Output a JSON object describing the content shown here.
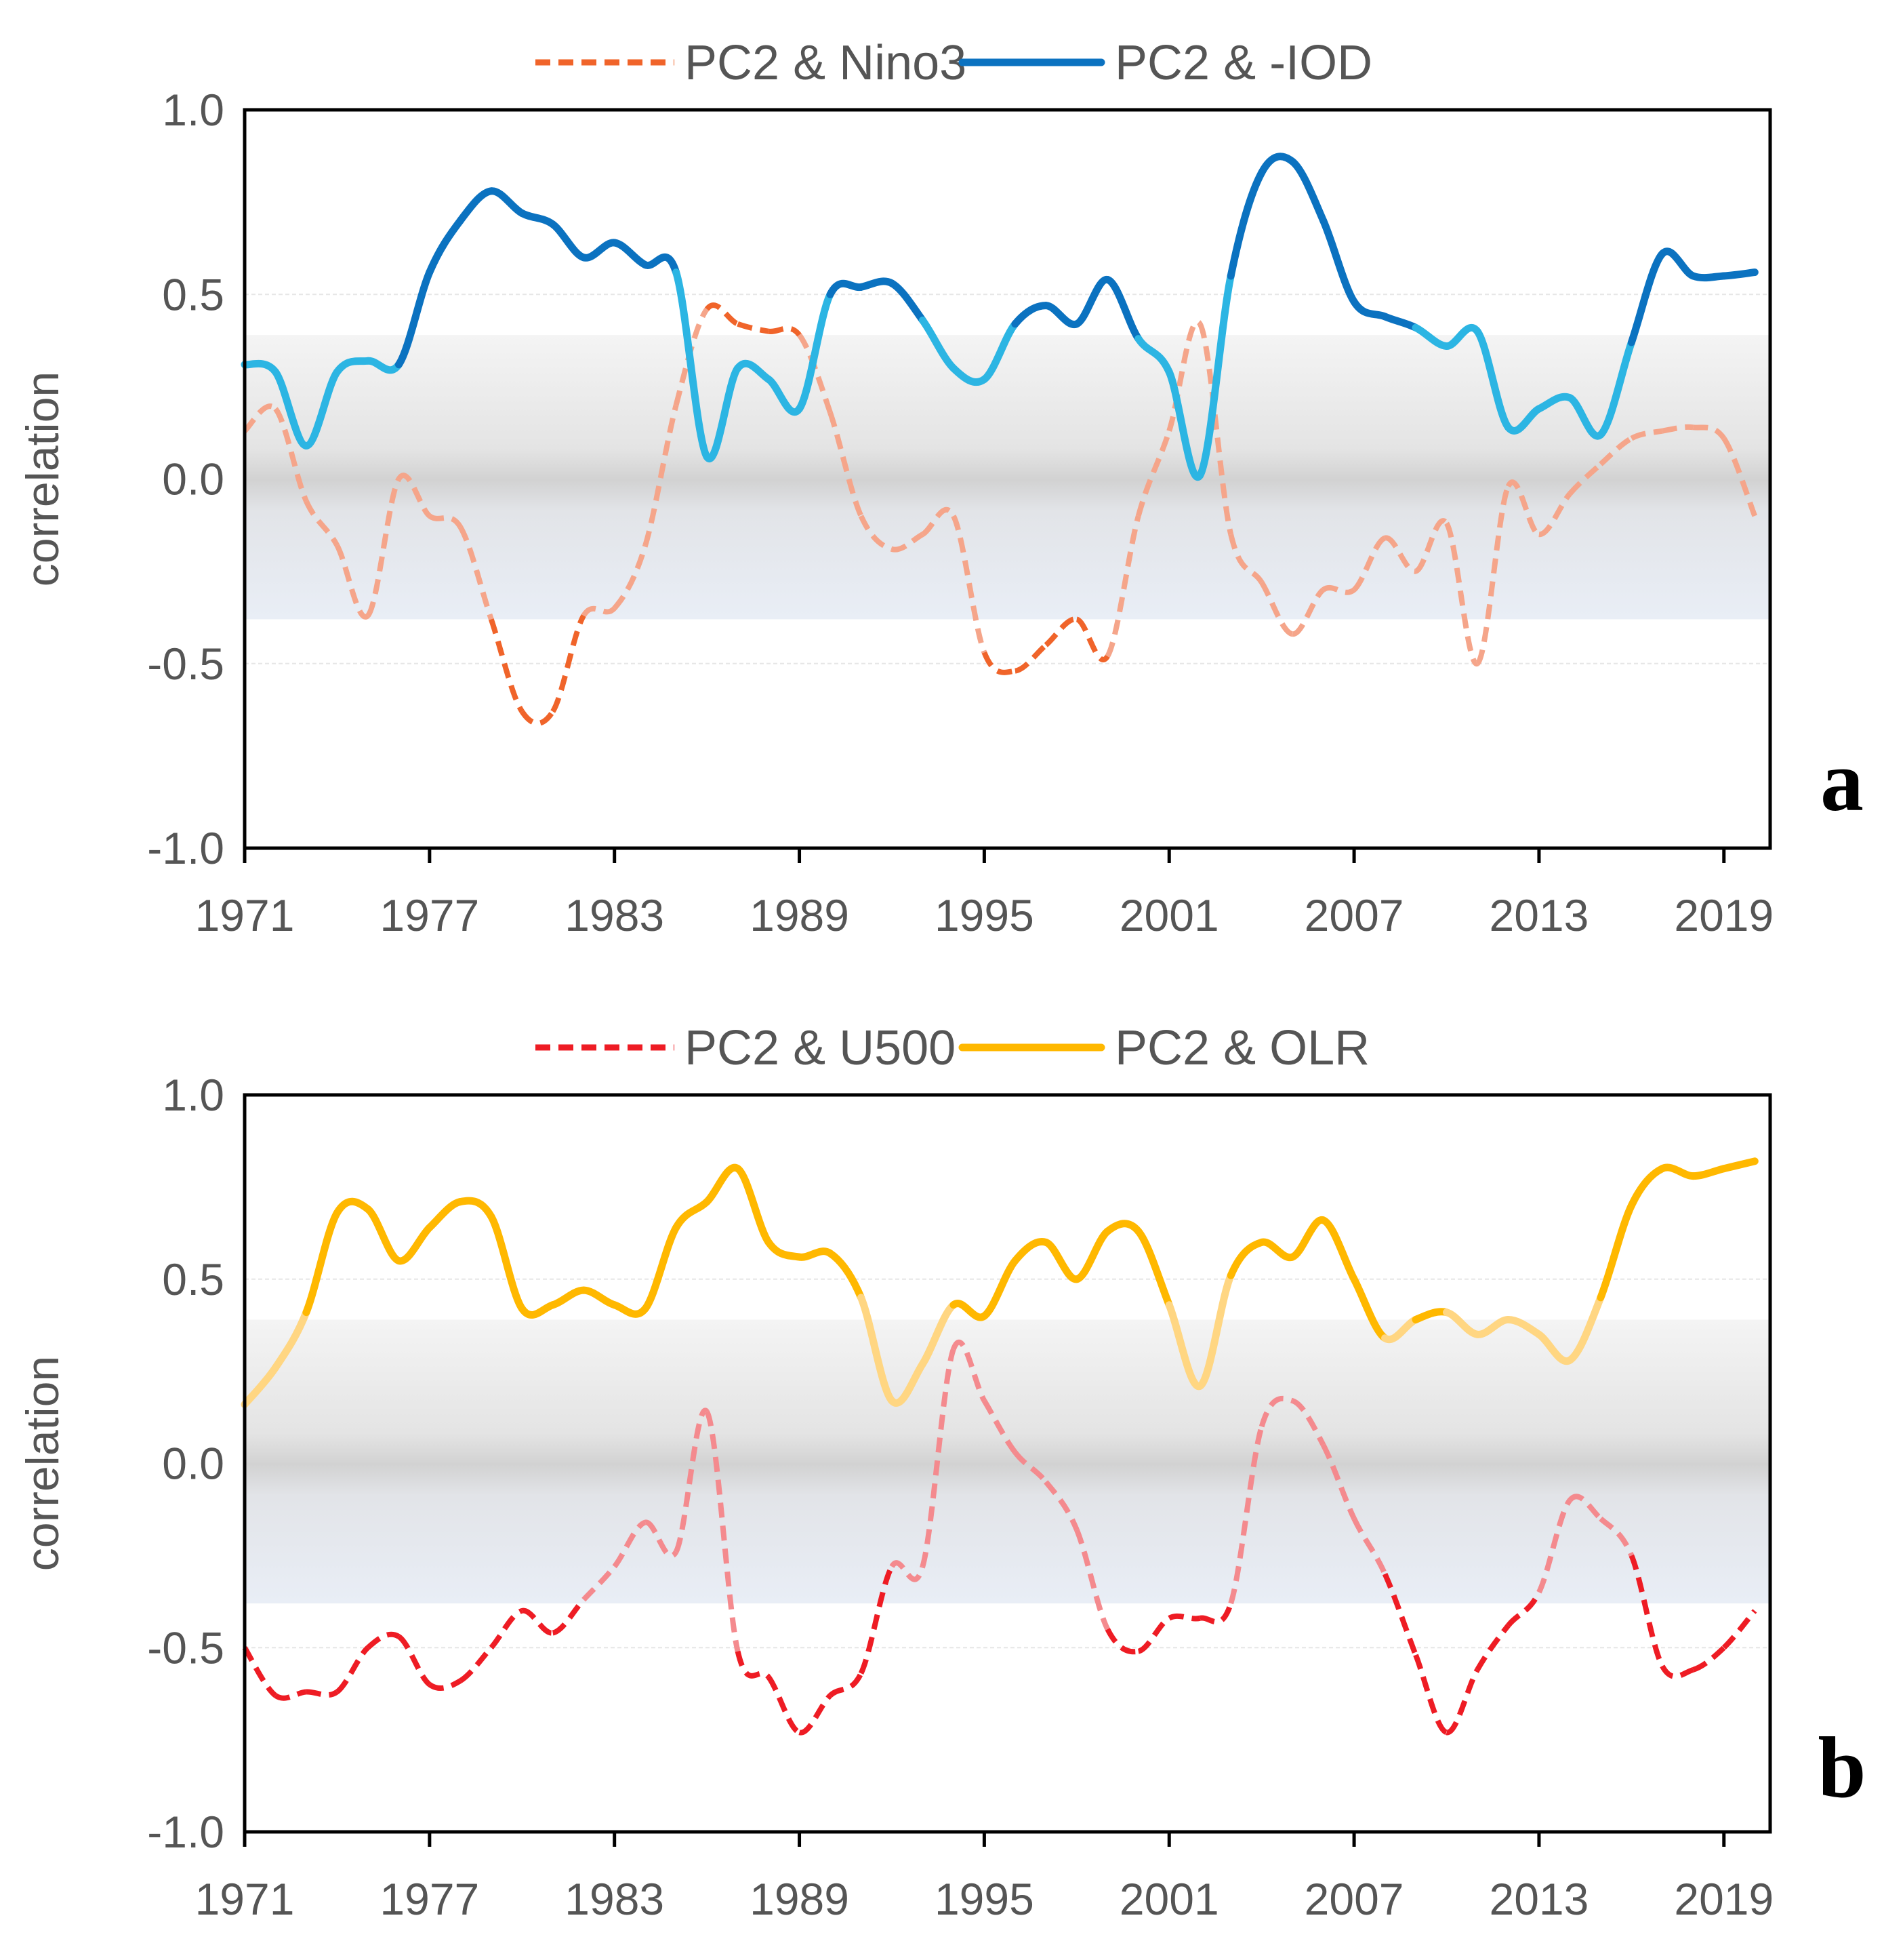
{
  "chart_data": [
    {
      "type": "line",
      "panel_label": "a",
      "ylabel": "correlation",
      "xlabel": "",
      "xlim": [
        1971,
        2020.5
      ],
      "ylim": [
        -1.0,
        1.0
      ],
      "yticks": [
        "1.0",
        "0.5",
        "0.0",
        "-0.5",
        "-1.0"
      ],
      "xticks": [
        "1971",
        "1977",
        "1983",
        "1989",
        "1995",
        "2001",
        "2007",
        "2013",
        "2019"
      ],
      "significance_band": [
        -0.38,
        0.39
      ],
      "legend_position": "top-center",
      "series": [
        {
          "name": "PC2 & Nino3",
          "style": "dashed",
          "color": "#f0642a",
          "faded_color": "#f5a58a",
          "x": [
            1971,
            1972,
            1973,
            1974,
            1975,
            1976,
            1977,
            1978,
            1979,
            1980,
            1981,
            1982,
            1983,
            1984,
            1985,
            1986,
            1987,
            1988,
            1989,
            1990,
            1991,
            1992,
            1993,
            1994,
            1995,
            1996,
            1997,
            1998,
            1999,
            2000,
            2001,
            2002,
            2003,
            2004,
            2005,
            2006,
            2007,
            2008,
            2009,
            2010,
            2011,
            2012,
            2013,
            2014,
            2015,
            2016,
            2017,
            2018,
            2019,
            2020
          ],
          "values": [
            0.13,
            0.19,
            -0.06,
            -0.18,
            -0.37,
            0.0,
            -0.1,
            -0.13,
            -0.38,
            -0.63,
            -0.63,
            -0.37,
            -0.35,
            -0.18,
            0.2,
            0.46,
            0.42,
            0.4,
            0.39,
            0.18,
            -0.1,
            -0.19,
            -0.15,
            -0.1,
            -0.47,
            -0.52,
            -0.45,
            -0.38,
            -0.48,
            -0.1,
            0.13,
            0.42,
            -0.15,
            -0.28,
            -0.42,
            -0.3,
            -0.3,
            -0.16,
            -0.25,
            -0.12,
            -0.5,
            -0.02,
            -0.15,
            -0.04,
            0.04,
            0.11,
            0.13,
            0.14,
            0.11,
            -0.1
          ]
        },
        {
          "name": "PC2 & -IOD",
          "style": "solid",
          "color": "#0b72c0",
          "faded_color": "#2cb5e3",
          "x": [
            1971,
            1972,
            1973,
            1974,
            1975,
            1976,
            1977,
            1978,
            1979,
            1980,
            1981,
            1982,
            1983,
            1984,
            1985,
            1986,
            1987,
            1988,
            1989,
            1990,
            1991,
            1992,
            1993,
            1994,
            1995,
            1996,
            1997,
            1998,
            1999,
            2000,
            2001,
            2002,
            2003,
            2004,
            2005,
            2006,
            2007,
            2008,
            2009,
            2010,
            2011,
            2012,
            2013,
            2014,
            2015,
            2016,
            2017,
            2018,
            2019,
            2020
          ],
          "values": [
            0.31,
            0.29,
            0.09,
            0.29,
            0.32,
            0.31,
            0.56,
            0.7,
            0.78,
            0.72,
            0.69,
            0.6,
            0.64,
            0.58,
            0.56,
            0.06,
            0.3,
            0.27,
            0.19,
            0.5,
            0.52,
            0.53,
            0.43,
            0.3,
            0.27,
            0.42,
            0.47,
            0.42,
            0.54,
            0.38,
            0.29,
            0.01,
            0.55,
            0.83,
            0.86,
            0.7,
            0.48,
            0.44,
            0.41,
            0.36,
            0.4,
            0.14,
            0.19,
            0.22,
            0.12,
            0.37,
            0.61,
            0.55,
            0.55,
            0.56
          ]
        }
      ]
    },
    {
      "type": "line",
      "panel_label": "b",
      "ylabel": "correlation",
      "xlabel": "",
      "xlim": [
        1971,
        2020.5
      ],
      "ylim": [
        -1.0,
        1.0
      ],
      "yticks": [
        "1.0",
        "0.5",
        "0.0",
        "-0.5",
        "-1.0"
      ],
      "xticks": [
        "1971",
        "1977",
        "1983",
        "1989",
        "1995",
        "2001",
        "2007",
        "2013",
        "2019"
      ],
      "significance_band": [
        -0.38,
        0.39
      ],
      "legend_position": "top-center",
      "series": [
        {
          "name": "PC2 & U500",
          "style": "dashed",
          "color": "#ee1c24",
          "faded_color": "#f48a8e",
          "x": [
            1971,
            1972,
            1973,
            1974,
            1975,
            1976,
            1977,
            1978,
            1979,
            1980,
            1981,
            1982,
            1983,
            1984,
            1985,
            1986,
            1987,
            1988,
            1989,
            1990,
            1991,
            1992,
            1993,
            1994,
            1995,
            1996,
            1997,
            1998,
            1999,
            2000,
            2001,
            2002,
            2003,
            2004,
            2005,
            2006,
            2007,
            2008,
            2009,
            2010,
            2011,
            2012,
            2013,
            2014,
            2015,
            2016,
            2017,
            2018,
            2019,
            2020
          ],
          "values": [
            -0.5,
            -0.63,
            -0.62,
            -0.62,
            -0.5,
            -0.47,
            -0.6,
            -0.59,
            -0.5,
            -0.4,
            -0.46,
            -0.37,
            -0.28,
            -0.16,
            -0.24,
            0.14,
            -0.51,
            -0.58,
            -0.73,
            -0.63,
            -0.57,
            -0.28,
            -0.28,
            0.31,
            0.17,
            0.03,
            -0.05,
            -0.18,
            -0.45,
            -0.51,
            -0.42,
            -0.42,
            -0.38,
            0.1,
            0.17,
            0.05,
            -0.15,
            -0.3,
            -0.52,
            -0.73,
            -0.56,
            -0.44,
            -0.35,
            -0.1,
            -0.15,
            -0.25,
            -0.55,
            -0.56,
            -0.5,
            -0.4
          ]
        },
        {
          "name": "PC2 & OLR",
          "style": "solid",
          "color": "#ffb800",
          "faded_color": "#ffd682",
          "x": [
            1971,
            1972,
            1973,
            1974,
            1975,
            1976,
            1977,
            1978,
            1979,
            1980,
            1981,
            1982,
            1983,
            1984,
            1985,
            1986,
            1987,
            1988,
            1989,
            1990,
            1991,
            1992,
            1993,
            1994,
            1995,
            1996,
            1997,
            1998,
            1999,
            2000,
            2001,
            2002,
            2003,
            2004,
            2005,
            2006,
            2007,
            2008,
            2009,
            2010,
            2011,
            2012,
            2013,
            2014,
            2015,
            2016,
            2017,
            2018,
            2019,
            2020
          ],
          "values": [
            0.16,
            0.26,
            0.41,
            0.68,
            0.69,
            0.55,
            0.64,
            0.71,
            0.67,
            0.42,
            0.43,
            0.47,
            0.43,
            0.42,
            0.64,
            0.71,
            0.8,
            0.6,
            0.56,
            0.57,
            0.45,
            0.17,
            0.27,
            0.43,
            0.4,
            0.55,
            0.6,
            0.5,
            0.63,
            0.63,
            0.43,
            0.21,
            0.51,
            0.6,
            0.56,
            0.66,
            0.5,
            0.34,
            0.39,
            0.41,
            0.35,
            0.39,
            0.35,
            0.28,
            0.45,
            0.7,
            0.8,
            0.78,
            0.8,
            0.82
          ]
        }
      ]
    }
  ]
}
